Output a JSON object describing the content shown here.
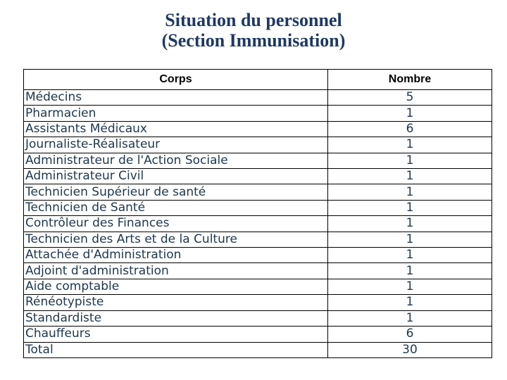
{
  "title": {
    "line1": "Situation du personnel",
    "line2": "(Section Immunisation)"
  },
  "table": {
    "headers": [
      "Corps",
      "Nombre"
    ],
    "rows": [
      [
        "Médecins",
        "5"
      ],
      [
        "Pharmacien",
        "1"
      ],
      [
        "Assistants Médicaux",
        "6"
      ],
      [
        "Journaliste-Réalisateur",
        "1"
      ],
      [
        "Administrateur de l'Action Sociale",
        "1"
      ],
      [
        "Administrateur Civil",
        "1"
      ],
      [
        "Technicien Supérieur de santé",
        "1"
      ],
      [
        "Technicien de Santé",
        "1"
      ],
      [
        "Contrôleur des Finances",
        "1"
      ],
      [
        "Technicien des Arts et de la Culture",
        "1"
      ],
      [
        "Attachée d'Administration",
        "1"
      ],
      [
        "Adjoint d'administration",
        "1"
      ],
      [
        "Aide comptable",
        "1"
      ],
      [
        "Rénéotypiste",
        "1"
      ],
      [
        "Standardiste",
        "1"
      ],
      [
        "Chauffeurs",
        "6"
      ],
      [
        "Total",
        "30"
      ]
    ]
  },
  "colors": {
    "title": "#1F3864",
    "body_text": "#203850",
    "header_text": "#000000",
    "border": "#000000",
    "background": "#FFFFFF"
  }
}
